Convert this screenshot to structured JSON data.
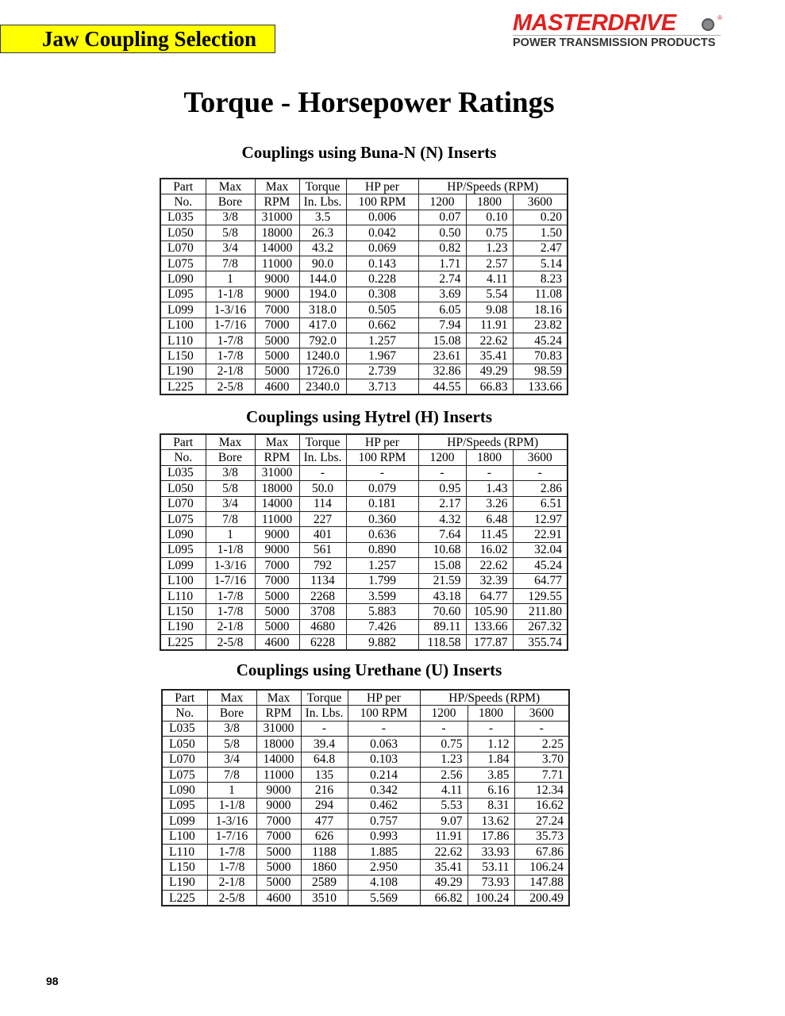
{
  "header": {
    "section_tag": "Jaw Coupling Selection",
    "logo_brand": "MASTERDRIVE",
    "logo_tagline": "POWER TRANSMISSION PRODUCTS",
    "logo_color": "#e0201f",
    "tag_color": "#ffff00"
  },
  "page_title": "Torque - Horsepower Ratings",
  "columns": {
    "part": [
      "Part",
      "No."
    ],
    "bore": [
      "Max",
      "Bore"
    ],
    "rpm": [
      "Max",
      "RPM"
    ],
    "torque": [
      "Torque",
      "In. Lbs."
    ],
    "hp100": [
      "HP per",
      "100 RPM"
    ],
    "speeds": "HP/Speeds (RPM)",
    "speed_values": [
      "1200",
      "1800",
      "3600"
    ]
  },
  "tables": [
    {
      "title": "Couplings using Buna-N (N) Inserts",
      "rows": [
        [
          "L035",
          "3/8",
          "31000",
          "3.5",
          "0.006",
          "0.07",
          "0.10",
          "0.20"
        ],
        [
          "L050",
          "5/8",
          "18000",
          "26.3",
          "0.042",
          "0.50",
          "0.75",
          "1.50"
        ],
        [
          "L070",
          "3/4",
          "14000",
          "43.2",
          "0.069",
          "0.82",
          "1.23",
          "2.47"
        ],
        [
          "L075",
          "7/8",
          "11000",
          "90.0",
          "0.143",
          "1.71",
          "2.57",
          "5.14"
        ],
        [
          "L090",
          "1",
          "9000",
          "144.0",
          "0.228",
          "2.74",
          "4.11",
          "8.23"
        ],
        [
          "L095",
          "1-1/8",
          "9000",
          "194.0",
          "0.308",
          "3.69",
          "5.54",
          "11.08"
        ],
        [
          "L099",
          "1-3/16",
          "7000",
          "318.0",
          "0.505",
          "6.05",
          "9.08",
          "18.16"
        ],
        [
          "L100",
          "1-7/16",
          "7000",
          "417.0",
          "0.662",
          "7.94",
          "11.91",
          "23.82"
        ],
        [
          "L110",
          "1-7/8",
          "5000",
          "792.0",
          "1.257",
          "15.08",
          "22.62",
          "45.24"
        ],
        [
          "L150",
          "1-7/8",
          "5000",
          "1240.0",
          "1.967",
          "23.61",
          "35.41",
          "70.83"
        ],
        [
          "L190",
          "2-1/8",
          "5000",
          "1726.0",
          "2.739",
          "32.86",
          "49.29",
          "98.59"
        ],
        [
          "L225",
          "2-5/8",
          "4600",
          "2340.0",
          "3.713",
          "44.55",
          "66.83",
          "133.66"
        ]
      ]
    },
    {
      "title": "Couplings using Hytrel (H) Inserts",
      "rows": [
        [
          "L035",
          "3/8",
          "31000",
          "-",
          "-",
          "-",
          "-",
          "-"
        ],
        [
          "L050",
          "5/8",
          "18000",
          "50.0",
          "0.079",
          "0.95",
          "1.43",
          "2.86"
        ],
        [
          "L070",
          "3/4",
          "14000",
          "114",
          "0.181",
          "2.17",
          "3.26",
          "6.51"
        ],
        [
          "L075",
          "7/8",
          "11000",
          "227",
          "0.360",
          "4.32",
          "6.48",
          "12.97"
        ],
        [
          "L090",
          "1",
          "9000",
          "401",
          "0.636",
          "7.64",
          "11.45",
          "22.91"
        ],
        [
          "L095",
          "1-1/8",
          "9000",
          "561",
          "0.890",
          "10.68",
          "16.02",
          "32.04"
        ],
        [
          "L099",
          "1-3/16",
          "7000",
          "792",
          "1.257",
          "15.08",
          "22.62",
          "45.24"
        ],
        [
          "L100",
          "1-7/16",
          "7000",
          "1134",
          "1.799",
          "21.59",
          "32.39",
          "64.77"
        ],
        [
          "L110",
          "1-7/8",
          "5000",
          "2268",
          "3.599",
          "43.18",
          "64.77",
          "129.55"
        ],
        [
          "L150",
          "1-7/8",
          "5000",
          "3708",
          "5.883",
          "70.60",
          "105.90",
          "211.80"
        ],
        [
          "L190",
          "2-1/8",
          "5000",
          "4680",
          "7.426",
          "89.11",
          "133.66",
          "267.32"
        ],
        [
          "L225",
          "2-5/8",
          "4600",
          "6228",
          "9.882",
          "118.58",
          "177.87",
          "355.74"
        ]
      ]
    },
    {
      "title": "Couplings using Urethane (U) Inserts",
      "rows": [
        [
          "L035",
          "3/8",
          "31000",
          "-",
          "-",
          "-",
          "-",
          "-"
        ],
        [
          "L050",
          "5/8",
          "18000",
          "39.4",
          "0.063",
          "0.75",
          "1.12",
          "2.25"
        ],
        [
          "L070",
          "3/4",
          "14000",
          "64.8",
          "0.103",
          "1.23",
          "1.84",
          "3.70"
        ],
        [
          "L075",
          "7/8",
          "11000",
          "135",
          "0.214",
          "2.56",
          "3.85",
          "7.71"
        ],
        [
          "L090",
          "1",
          "9000",
          "216",
          "0.342",
          "4.11",
          "6.16",
          "12.34"
        ],
        [
          "L095",
          "1-1/8",
          "9000",
          "294",
          "0.462",
          "5.53",
          "8.31",
          "16.62"
        ],
        [
          "L099",
          "1-3/16",
          "7000",
          "477",
          "0.757",
          "9.07",
          "13.62",
          "27.24"
        ],
        [
          "L100",
          "1-7/16",
          "7000",
          "626",
          "0.993",
          "11.91",
          "17.86",
          "35.73"
        ],
        [
          "L110",
          "1-7/8",
          "5000",
          "1188",
          "1.885",
          "22.62",
          "33.93",
          "67.86"
        ],
        [
          "L150",
          "1-7/8",
          "5000",
          "1860",
          "2.950",
          "35.41",
          "53.11",
          "106.24"
        ],
        [
          "L190",
          "2-1/8",
          "5000",
          "2589",
          "4.108",
          "49.29",
          "73.93",
          "147.88"
        ],
        [
          "L225",
          "2-5/8",
          "4600",
          "3510",
          "5.569",
          "66.82",
          "100.24",
          "200.49"
        ]
      ]
    }
  ],
  "page_number": "98"
}
